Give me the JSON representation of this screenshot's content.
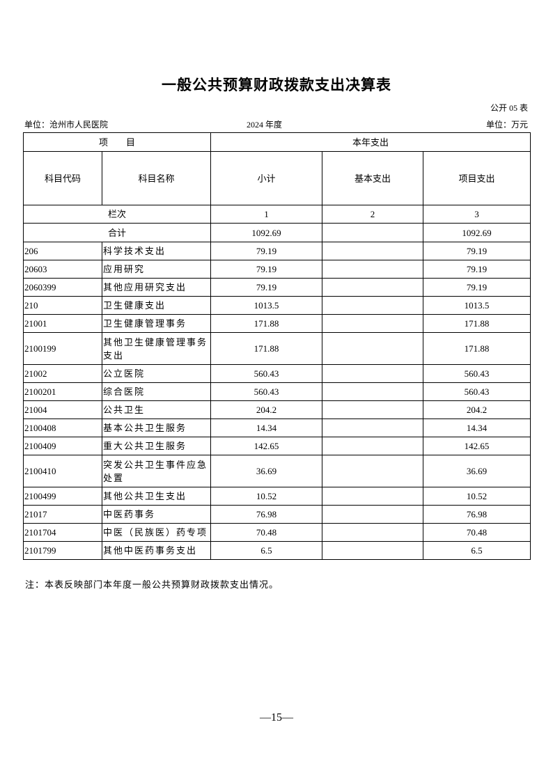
{
  "title": "一般公共预算财政拨款支出决算表",
  "form_no": "公开 05 表",
  "unit_org": "单位：沧州市人民医院",
  "year": "2024 年度",
  "unit_money": "单位：万元",
  "header": {
    "item": "项　　目",
    "current_year": "本年支出",
    "code": "科目代码",
    "name": "科目名称",
    "subtotal": "小计",
    "basic": "基本支出",
    "project": "项目支出",
    "column_label": "栏次",
    "col1": "1",
    "col2": "2",
    "col3": "3",
    "total_label": "合计",
    "total_subtotal": "1092.69",
    "total_basic": "",
    "total_project": "1092.69"
  },
  "rows": [
    {
      "code": "206",
      "name": "科学技术支出",
      "subtotal": "79.19",
      "basic": "",
      "project": "79.19"
    },
    {
      "code": "20603",
      "name": "应用研究",
      "subtotal": "79.19",
      "basic": "",
      "project": "79.19"
    },
    {
      "code": "2060399",
      "name": "其他应用研究支出",
      "subtotal": "79.19",
      "basic": "",
      "project": "79.19"
    },
    {
      "code": "210",
      "name": "卫生健康支出",
      "subtotal": "1013.5",
      "basic": "",
      "project": "1013.5"
    },
    {
      "code": "21001",
      "name": "卫生健康管理事务",
      "subtotal": "171.88",
      "basic": "",
      "project": "171.88"
    },
    {
      "code": "2100199",
      "name": "其他卫生健康管理事务支出",
      "subtotal": "171.88",
      "basic": "",
      "project": "171.88"
    },
    {
      "code": "21002",
      "name": "公立医院",
      "subtotal": "560.43",
      "basic": "",
      "project": "560.43"
    },
    {
      "code": "2100201",
      "name": "综合医院",
      "subtotal": "560.43",
      "basic": "",
      "project": "560.43"
    },
    {
      "code": "21004",
      "name": "公共卫生",
      "subtotal": "204.2",
      "basic": "",
      "project": "204.2"
    },
    {
      "code": "2100408",
      "name": "基本公共卫生服务",
      "subtotal": "14.34",
      "basic": "",
      "project": "14.34"
    },
    {
      "code": "2100409",
      "name": "重大公共卫生服务",
      "subtotal": "142.65",
      "basic": "",
      "project": "142.65"
    },
    {
      "code": "2100410",
      "name": "突发公共卫生事件应急处置",
      "subtotal": "36.69",
      "basic": "",
      "project": "36.69"
    },
    {
      "code": "2100499",
      "name": "其他公共卫生支出",
      "subtotal": "10.52",
      "basic": "",
      "project": "10.52"
    },
    {
      "code": "21017",
      "name": "中医药事务",
      "subtotal": "76.98",
      "basic": "",
      "project": "76.98"
    },
    {
      "code": "2101704",
      "name": "中医（民族医）药专项",
      "subtotal": "70.48",
      "basic": "",
      "project": "70.48"
    },
    {
      "code": "2101799",
      "name": "其他中医药事务支出",
      "subtotal": "6.5",
      "basic": "",
      "project": "6.5"
    }
  ],
  "note": "注：本表反映部门本年度一般公共预算财政拨款支出情况。",
  "page_number": "—15—"
}
